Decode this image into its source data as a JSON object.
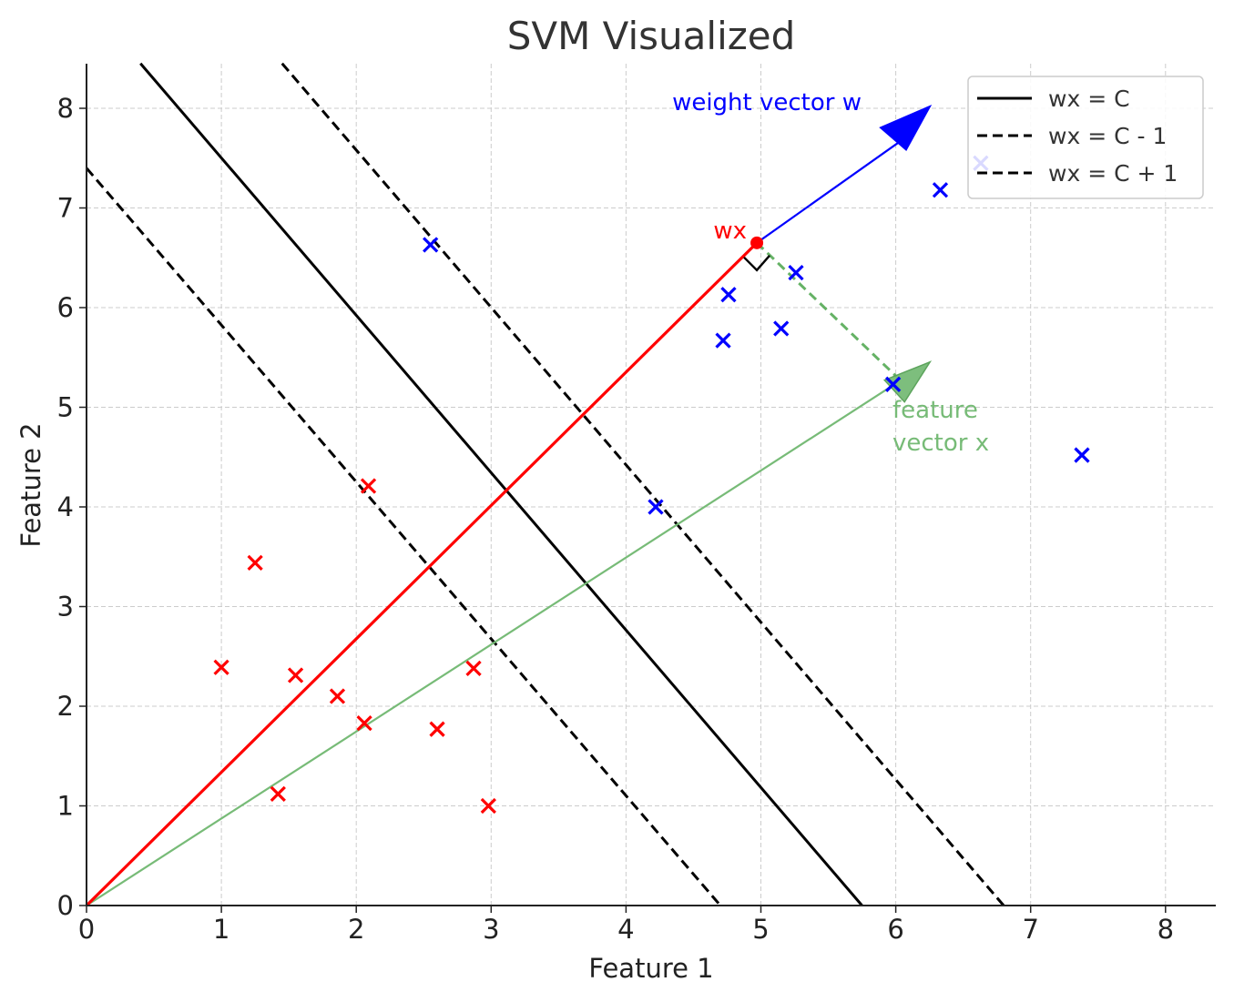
{
  "chart_data": {
    "type": "scatter",
    "title": "SVM Visualized",
    "xlabel": "Feature 1",
    "ylabel": "Feature 2",
    "xlim": [
      0,
      8.4
    ],
    "ylim": [
      0,
      8.45
    ],
    "xticks": [
      0,
      1,
      2,
      3,
      4,
      5,
      6,
      7,
      8
    ],
    "yticks": [
      0,
      1,
      2,
      3,
      4,
      5,
      6,
      7,
      8
    ],
    "grid": true,
    "legend_position": "top-right",
    "series": [
      {
        "color": "#ff0000",
        "marker": "x",
        "points": [
          [
            1.0,
            2.39
          ],
          [
            1.25,
            3.44
          ],
          [
            1.55,
            2.31
          ],
          [
            1.86,
            2.1
          ],
          [
            2.06,
            1.83
          ],
          [
            2.09,
            4.21
          ],
          [
            1.42,
            1.12
          ],
          [
            2.6,
            1.77
          ],
          [
            2.87,
            2.38
          ],
          [
            2.98,
            1.0
          ]
        ]
      },
      {
        "color": "#0000ff",
        "marker": "x",
        "points": [
          [
            2.55,
            6.63
          ],
          [
            4.22,
            4.0
          ],
          [
            4.72,
            5.67
          ],
          [
            4.76,
            6.13
          ],
          [
            5.15,
            5.79
          ],
          [
            5.26,
            6.35
          ],
          [
            5.98,
            5.23
          ],
          [
            6.33,
            7.18
          ],
          [
            6.63,
            7.45
          ],
          [
            7.38,
            4.52
          ]
        ]
      }
    ],
    "lines": [
      {
        "label": "wx = C",
        "style": "solid",
        "color": "#000000",
        "from": [
          0.4,
          8.45
        ],
        "to": [
          5.75,
          0
        ]
      },
      {
        "label": "wx = C - 1",
        "style": "dashed",
        "color": "#000000",
        "from": [
          0.0,
          7.4
        ],
        "to": [
          4.7,
          0
        ]
      },
      {
        "label": "wx = C + 1",
        "style": "dashed",
        "color": "#000000",
        "from": [
          1.45,
          8.45
        ],
        "to": [
          6.8,
          0
        ]
      }
    ],
    "legend": [
      "wx = C",
      "wx = C - 1",
      "wx = C + 1"
    ],
    "annotations": {
      "weight_vector": {
        "label": "weight vector w",
        "color": "#0000ff",
        "from": [
          4.97,
          6.65
        ],
        "to": [
          6.2,
          7.9
        ]
      },
      "feature_vector": {
        "label": "feature vector x",
        "label_lines": [
          "feature",
          "vector x"
        ],
        "color": "#77bb77",
        "from": [
          0,
          0
        ],
        "to": [
          6.2,
          5.4
        ]
      },
      "projection": {
        "label": "wx",
        "color": "#ff0000",
        "from": [
          0,
          0
        ],
        "to": [
          4.97,
          6.65
        ]
      },
      "projection_drop": {
        "color": "#55aa55",
        "from": [
          4.97,
          6.65
        ],
        "to": [
          6.05,
          5.25
        ]
      }
    }
  }
}
